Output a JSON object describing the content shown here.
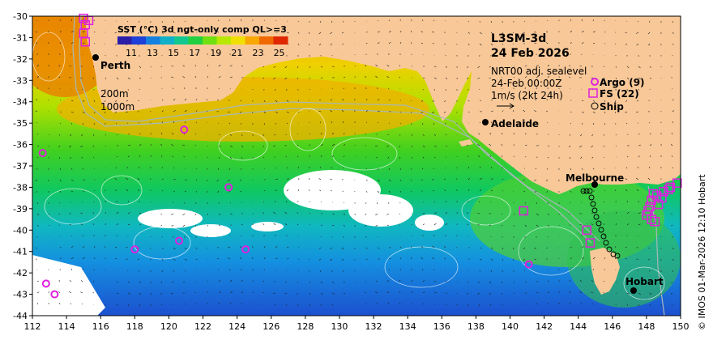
{
  "title": {
    "product": "L3SM-3d",
    "date": "24 Feb 2026",
    "line1": "NRT00 adj. sealevel",
    "line2": "24-Feb 00:00Z",
    "line3": "1m/s (2kt 24h)"
  },
  "colorbar": {
    "label": "SST (°C) 3d ngt-only comp QL>=3",
    "ticks": [
      "11",
      "13",
      "15",
      "17",
      "19",
      "21",
      "23",
      "25"
    ],
    "colors": [
      "#2a1ea8",
      "#1c40d8",
      "#1480e0",
      "#10b0c8",
      "#10c890",
      "#20d040",
      "#70e010",
      "#b8e800",
      "#f0e000",
      "#f8a800",
      "#f06800",
      "#e02800"
    ]
  },
  "legend": {
    "argo": "Argo (9)",
    "fs": "FS (22)",
    "ship": "Ship"
  },
  "contours": {
    "c200": "200m",
    "c1000": "1000m"
  },
  "cities": {
    "perth": "Perth",
    "adelaide": "Adelaide",
    "melbourne": "Melbourne",
    "hobart": "Hobart"
  },
  "axes": {
    "x_ticks": [
      "112",
      "114",
      "116",
      "118",
      "120",
      "122",
      "124",
      "126",
      "128",
      "130",
      "132",
      "134",
      "136",
      "138",
      "140",
      "142",
      "144",
      "146",
      "148",
      "150"
    ],
    "y_ticks": [
      "-30",
      "-31",
      "-32",
      "-33",
      "-34",
      "-35",
      "-36",
      "-37",
      "-38",
      "-39",
      "-40",
      "-41",
      "-42",
      "-43",
      "-44"
    ]
  },
  "credit": "© IMOS 01-Mar-2026 12:10 Hobart",
  "markers": {
    "argo": [
      [
        112.6,
        -36.4
      ],
      [
        120.9,
        -35.3
      ],
      [
        123.5,
        -38.0
      ],
      [
        118.0,
        -40.9
      ],
      [
        120.6,
        -40.5
      ],
      [
        124.5,
        -40.9
      ],
      [
        112.8,
        -42.5
      ],
      [
        113.3,
        -43.0
      ],
      [
        141.1,
        -41.6
      ]
    ],
    "fs": [
      [
        115.0,
        -30.1
      ],
      [
        115.1,
        -30.4
      ],
      [
        115.0,
        -30.8
      ],
      [
        115.1,
        -31.2
      ],
      [
        149.8,
        -37.8
      ],
      [
        149.4,
        -38.0
      ],
      [
        149.0,
        -38.2
      ],
      [
        148.6,
        -38.4
      ],
      [
        148.3,
        -38.6
      ],
      [
        148.2,
        -38.9
      ],
      [
        148.0,
        -39.3
      ],
      [
        148.3,
        -39.5
      ],
      [
        140.8,
        -39.1
      ],
      [
        144.5,
        -40.0
      ],
      [
        144.7,
        -40.6
      ],
      [
        148.4,
        -38.3
      ],
      [
        148.7,
        -38.8
      ],
      [
        148.1,
        -39.1
      ],
      [
        149.3,
        -38.1
      ],
      [
        115.3,
        -30.2
      ],
      [
        148.5,
        -39.6
      ],
      [
        148.9,
        -38.5
      ]
    ]
  }
}
